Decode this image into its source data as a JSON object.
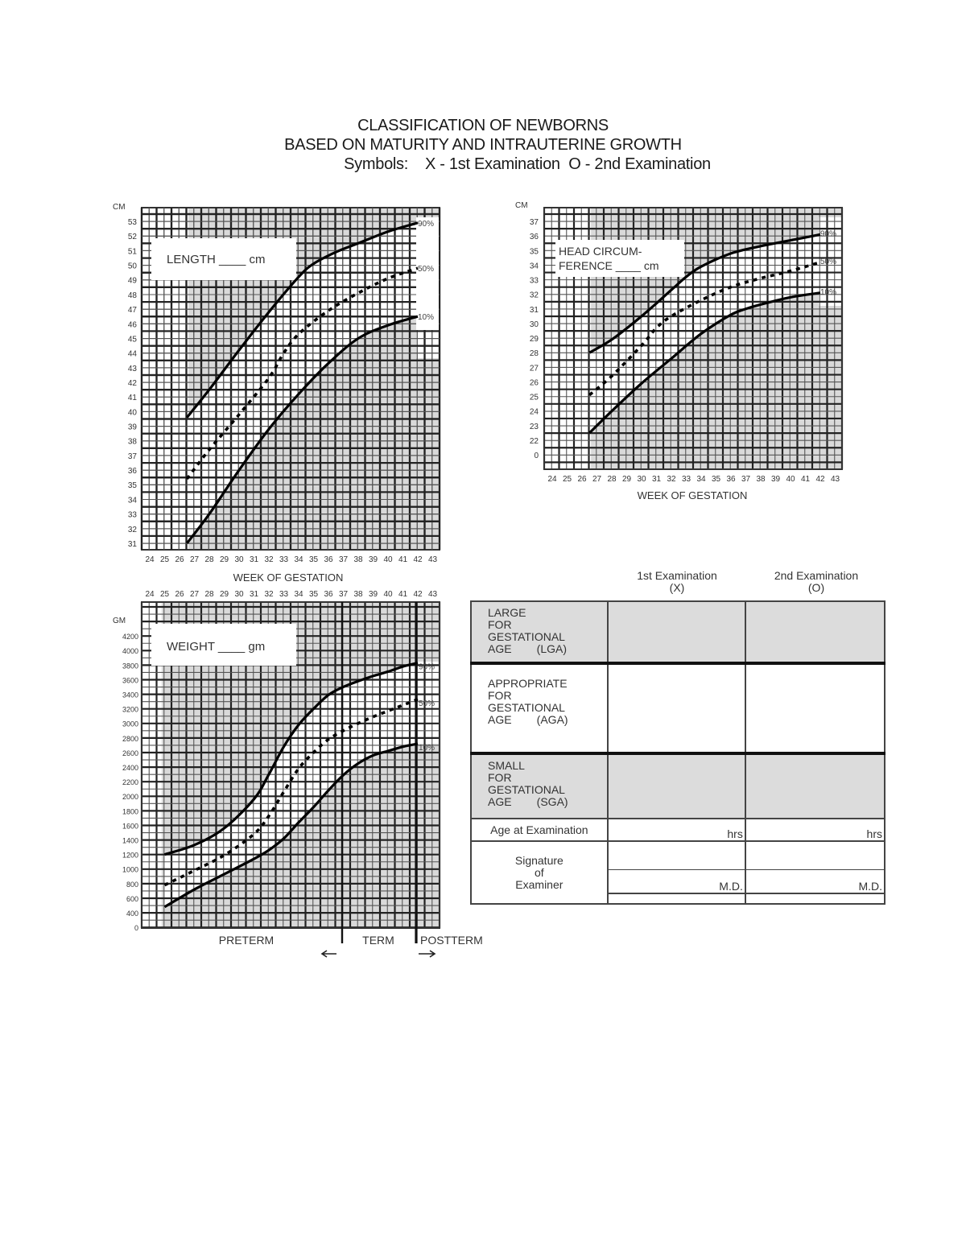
{
  "header": {
    "title_line1": "CLASSIFICATION OF NEWBORNS",
    "title_line2": "BASED ON MATURITY AND INTRAUTERINE GROWTH",
    "symbols_line": "Symbols:    X - 1st Examination  O - 2nd Examination"
  },
  "charts": {
    "length": {
      "unit_label": "CM",
      "box_label": "LENGTH ____ cm",
      "xlabel": "WEEK OF GESTATION"
    },
    "head": {
      "unit_label": "CM",
      "box_line1": "HEAD CIRCUM-",
      "box_line2": "FERENCE ____ cm",
      "xlabel": "WEEK OF GESTATION"
    },
    "weight": {
      "unit_label": "GM",
      "box_label": "WEIGHT ____ gm",
      "preterm": "PRETERM",
      "term": "TERM",
      "postterm": "POSTTERM"
    },
    "percentile_labels": [
      "90%",
      "50%",
      "10%"
    ]
  },
  "chart_data": [
    {
      "type": "line",
      "title": "LENGTH",
      "xlabel": "WEEK OF GESTATION",
      "ylabel": "CM",
      "x_ticks": [
        24,
        25,
        26,
        27,
        28,
        29,
        30,
        31,
        32,
        33,
        34,
        35,
        36,
        37,
        38,
        39,
        40,
        41,
        42,
        43
      ],
      "y_ticks": [
        31,
        32,
        33,
        34,
        35,
        36,
        37,
        38,
        39,
        40,
        41,
        42,
        43,
        44,
        45,
        46,
        47,
        48,
        49,
        50,
        51,
        52,
        53
      ],
      "ylim": [
        30.5,
        54
      ],
      "grid": true,
      "series": [
        {
          "name": "90%",
          "style": "solid",
          "x": [
            26.5,
            28,
            30,
            32,
            34,
            35,
            36.5,
            38,
            40,
            42
          ],
          "y": [
            39.6,
            41.5,
            44.2,
            46.8,
            49.2,
            50.1,
            50.9,
            51.5,
            52.3,
            52.9
          ]
        },
        {
          "name": "50%",
          "style": "dashed",
          "x": [
            26.5,
            28,
            30,
            32,
            33,
            34,
            36,
            38,
            40,
            42
          ],
          "y": [
            35.4,
            37.4,
            39.8,
            42.3,
            44.0,
            45.3,
            46.9,
            48.1,
            49.1,
            49.8
          ]
        },
        {
          "name": "10%",
          "style": "solid",
          "x": [
            26.5,
            28,
            30,
            32,
            34,
            36,
            38,
            40,
            42
          ],
          "y": [
            31.0,
            33.0,
            36.0,
            38.8,
            41.2,
            43.3,
            45.0,
            45.9,
            46.5
          ]
        }
      ]
    },
    {
      "type": "line",
      "title": "HEAD CIRCUMFERENCE",
      "xlabel": "WEEK OF GESTATION",
      "ylabel": "CM",
      "x_ticks": [
        24,
        25,
        26,
        27,
        28,
        29,
        30,
        31,
        32,
        33,
        34,
        35,
        36,
        37,
        38,
        39,
        40,
        41,
        42,
        43
      ],
      "y_ticks": [
        "0",
        22,
        23,
        24,
        25,
        26,
        27,
        28,
        29,
        30,
        31,
        32,
        33,
        34,
        35,
        36,
        37
      ],
      "ylim": [
        20,
        38
      ],
      "grid": true,
      "series": [
        {
          "name": "90%",
          "style": "solid",
          "x": [
            26.5,
            28,
            30,
            32,
            33,
            34,
            36,
            38,
            40,
            42
          ],
          "y": [
            28.0,
            28.9,
            30.5,
            32.3,
            33.2,
            33.9,
            34.8,
            35.3,
            35.7,
            36.1
          ]
        },
        {
          "name": "50%",
          "style": "dashed",
          "x": [
            26.5,
            28,
            30,
            31,
            32,
            34,
            36,
            38,
            40,
            42
          ],
          "y": [
            25.1,
            26.4,
            28.5,
            29.7,
            30.5,
            31.6,
            32.5,
            33.1,
            33.6,
            34.2
          ]
        },
        {
          "name": "10%",
          "style": "solid",
          "x": [
            26.5,
            28,
            30,
            32,
            34,
            36,
            37,
            38,
            40,
            42
          ],
          "y": [
            22.5,
            24.0,
            25.9,
            27.6,
            29.3,
            30.6,
            31.0,
            31.3,
            31.8,
            32.1
          ]
        }
      ]
    },
    {
      "type": "line",
      "title": "WEIGHT",
      "xlabel": "",
      "ylabel": "GM",
      "x_ticks": [
        24,
        25,
        26,
        27,
        28,
        29,
        30,
        31,
        32,
        33,
        34,
        35,
        36,
        37,
        38,
        39,
        40,
        41,
        42,
        43
      ],
      "y_ticks": [
        0,
        400,
        600,
        800,
        1000,
        1200,
        1400,
        1600,
        1800,
        2000,
        2200,
        2400,
        2600,
        2800,
        3000,
        3200,
        3400,
        3600,
        3800,
        4000,
        4200
      ],
      "ylim": [
        0,
        4600
      ],
      "grid": true,
      "annotations": [
        "PRETERM",
        "TERM",
        "POSTTERM",
        "vertical line at 37 weeks",
        "vertical line at 42 weeks"
      ],
      "series": [
        {
          "name": "90%",
          "style": "solid",
          "x": [
            25,
            27,
            29,
            31,
            32,
            33,
            34,
            35,
            36,
            37,
            38,
            39,
            40,
            41,
            42
          ],
          "y": [
            1200,
            1330,
            1560,
            1960,
            2300,
            2680,
            2980,
            3200,
            3390,
            3500,
            3580,
            3650,
            3710,
            3780,
            3830
          ]
        },
        {
          "name": "50%",
          "style": "dashed",
          "x": [
            25,
            27,
            29,
            31,
            32,
            33,
            34,
            35,
            36,
            37,
            38,
            39,
            40,
            41,
            42
          ],
          "y": [
            780,
            980,
            1190,
            1480,
            1730,
            2060,
            2380,
            2600,
            2780,
            2900,
            3000,
            3090,
            3170,
            3250,
            3330
          ]
        },
        {
          "name": "10%",
          "style": "solid",
          "x": [
            25,
            27,
            29,
            31,
            32,
            33,
            34,
            35,
            36,
            37,
            38,
            39,
            40,
            41,
            42
          ],
          "y": [
            480,
            720,
            930,
            1140,
            1260,
            1420,
            1640,
            1850,
            2080,
            2290,
            2450,
            2560,
            2620,
            2680,
            2720
          ]
        }
      ]
    }
  ],
  "exam_table": {
    "col1_line1": "1st Examination",
    "col1_line2": "(X)",
    "col2_line1": "2nd Examination",
    "col2_line2": "(O)",
    "lga": [
      "LARGE",
      "FOR",
      "GESTATIONAL",
      "AGE        (LGA)"
    ],
    "aga": [
      "APPROPRIATE",
      "FOR",
      "GESTATIONAL",
      "AGE        (AGA)"
    ],
    "sga": [
      "SMALL",
      "FOR",
      "GESTATIONAL",
      "AGE        (SGA)"
    ],
    "age_label": "Age at Examination",
    "hrs": "hrs",
    "sig_line1": "Signature",
    "sig_line2": "of",
    "sig_line3": "Examiner",
    "md": "M.D."
  },
  "colors": {
    "shade": "#d9d9d9",
    "grid_thin": "#555555",
    "grid_thick": "#222222",
    "curve": "#000000"
  }
}
